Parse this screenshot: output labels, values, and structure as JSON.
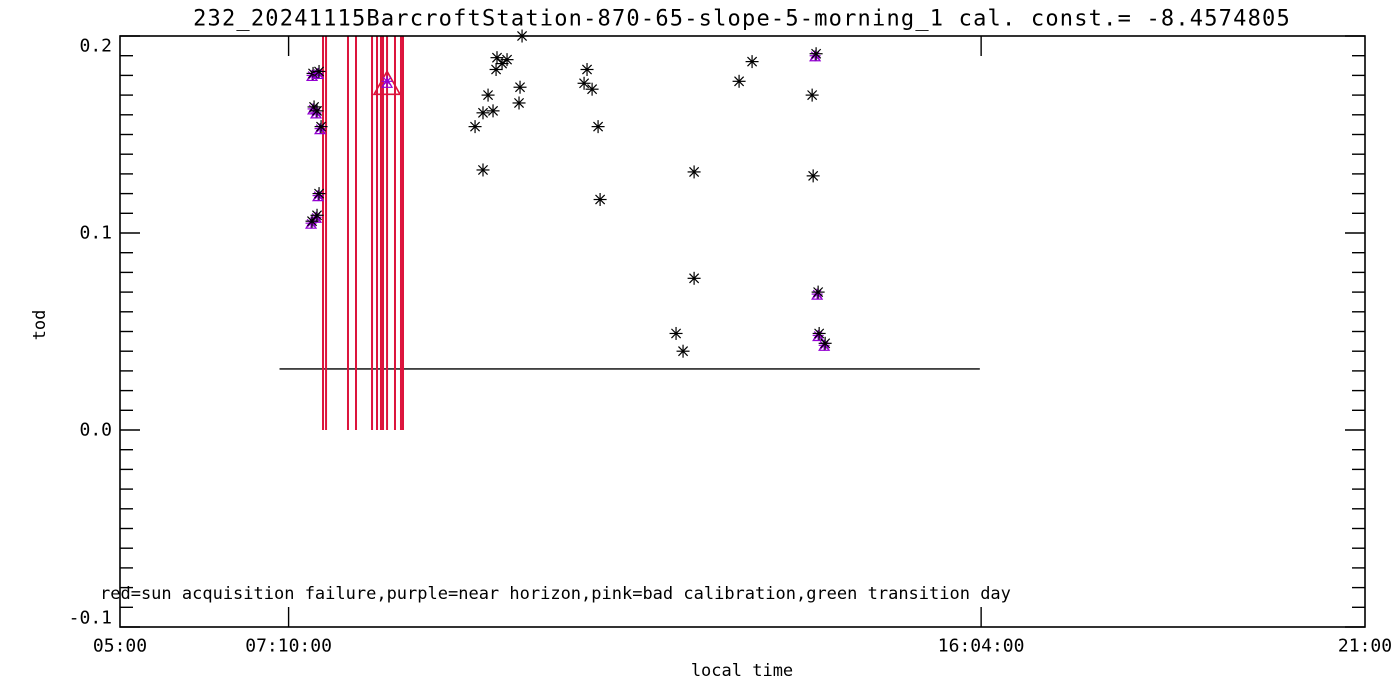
{
  "chart_data": {
    "type": "scatter",
    "title": "232_20241115BarcroftStation-870-65-slope-5-morning_1 cal. const.= -8.4574805",
    "xlabel": "local time",
    "ylabel": "tod",
    "annotation": "red=sun acquisition failure,purple=near horizon,pink=bad calibration,green transition day",
    "grid": false,
    "legend": "none",
    "x_axis": {
      "min_hours": 5,
      "max_hours": 21,
      "ticks": [
        {
          "hours": 5,
          "label": "05:00"
        },
        {
          "hours": 7.1667,
          "label": "07:10:00"
        },
        {
          "hours": 16.0667,
          "label": "16:04:00"
        },
        {
          "hours": 21,
          "label": "21:00"
        }
      ]
    },
    "y_axis": {
      "min": -0.1,
      "max": 0.2,
      "minor_step": 0.01,
      "major_ticks": [
        {
          "value": 0.2,
          "label": "0.2"
        },
        {
          "value": 0.1,
          "label": "0.1"
        },
        {
          "value": 0.0,
          "label": "0.0"
        },
        {
          "value": -0.1,
          "label": "-0.1"
        }
      ]
    },
    "colors": {
      "valid_marker": "#000000",
      "near_horizon": "#9400d3",
      "sun_acquisition_failure": "#dc143c",
      "bad_calibration": "#dc143c",
      "axis": "#000000"
    },
    "series": [
      {
        "name": "valid",
        "marker": "asterisk",
        "color": "#000000",
        "points": [
          {
            "t": 10.167,
            "tod": 0.2
          },
          {
            "t": 9.845,
            "tod": 0.189
          },
          {
            "t": 9.974,
            "tod": 0.188
          },
          {
            "t": 9.91,
            "tod": 0.186
          },
          {
            "t": 9.833,
            "tod": 0.183
          },
          {
            "t": 10.141,
            "tod": 0.174
          },
          {
            "t": 9.73,
            "tod": 0.17
          },
          {
            "t": 10.128,
            "tod": 0.166
          },
          {
            "t": 9.794,
            "tod": 0.162
          },
          {
            "t": 9.665,
            "tod": 0.161
          },
          {
            "t": 9.563,
            "tod": 0.154
          },
          {
            "t": 9.665,
            "tod": 0.132
          },
          {
            "t": 11.002,
            "tod": 0.183
          },
          {
            "t": 10.964,
            "tod": 0.176
          },
          {
            "t": 11.067,
            "tod": 0.173
          },
          {
            "t": 11.144,
            "tod": 0.154
          },
          {
            "t": 11.17,
            "tod": 0.117
          },
          {
            "t": 13.123,
            "tod": 0.187
          },
          {
            "t": 12.956,
            "tod": 0.177
          },
          {
            "t": 12.378,
            "tod": 0.131
          },
          {
            "t": 12.378,
            "tod": 0.077
          },
          {
            "t": 12.146,
            "tod": 0.049
          },
          {
            "t": 12.236,
            "tod": 0.04
          },
          {
            "t": 13.895,
            "tod": 0.17
          },
          {
            "t": 13.908,
            "tod": 0.129
          }
        ]
      },
      {
        "name": "near_horizon",
        "marker": "asterisk+small-triangle",
        "color": "#9400d3",
        "points": [
          {
            "t": 7.481,
            "tod": 0.181
          },
          {
            "t": 7.558,
            "tod": 0.182
          },
          {
            "t": 7.494,
            "tod": 0.164
          },
          {
            "t": 7.532,
            "tod": 0.162
          },
          {
            "t": 7.584,
            "tod": 0.154
          },
          {
            "t": 7.558,
            "tod": 0.12
          },
          {
            "t": 7.532,
            "tod": 0.109
          },
          {
            "t": 7.468,
            "tod": 0.106
          },
          {
            "t": 13.946,
            "tod": 0.191
          },
          {
            "t": 13.972,
            "tod": 0.07
          },
          {
            "t": 13.985,
            "tod": 0.049
          },
          {
            "t": 14.062,
            "tod": 0.044
          }
        ]
      },
      {
        "name": "bad_calibration",
        "marker": "large-open-triangle",
        "color": "#dc143c",
        "points": [
          {
            "t": 8.432,
            "tod": 0.177
          }
        ]
      }
    ],
    "failure_lines": {
      "color": "#dc143c",
      "tod_min": 0.0,
      "tod_max": 0.2,
      "hours": [
        7.609,
        7.648,
        7.93,
        8.033,
        8.239,
        8.303,
        8.354,
        8.38,
        8.432,
        8.534,
        8.611,
        8.637
      ]
    },
    "baseline": {
      "start_hours": 7.05,
      "end_hours": 16.05,
      "tod": 0.031,
      "color": "#000000"
    }
  }
}
